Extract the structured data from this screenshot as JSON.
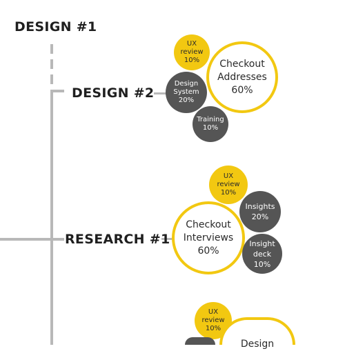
{
  "headings": {
    "design1": "DESIGN #1",
    "design2": "DESIGN #2",
    "research1": "RESEARCH #1"
  },
  "groups": {
    "design2": {
      "ux_review": {
        "label_lines": [
          "UX",
          "review"
        ],
        "pct": "10%"
      },
      "checkout_addresses": {
        "label_lines": [
          "Checkout",
          "Addresses"
        ],
        "pct": "60%"
      },
      "design_system": {
        "label_lines": [
          "Design",
          "System"
        ],
        "pct": "20%"
      },
      "training": {
        "label_lines": [
          "Training"
        ],
        "pct": "10%"
      }
    },
    "research1": {
      "ux_review": {
        "label_lines": [
          "UX",
          "review"
        ],
        "pct": "10%"
      },
      "insights": {
        "label_lines": [
          "Insights"
        ],
        "pct": "20%"
      },
      "checkout_interviews": {
        "label_lines": [
          "Checkout",
          "Interviews"
        ],
        "pct": "60%"
      },
      "insight_deck": {
        "label_lines": [
          "Insight",
          "deck"
        ],
        "pct": "10%"
      }
    },
    "partial": {
      "ux_review": {
        "label_lines": [
          "UX",
          "review"
        ],
        "pct": "10%"
      },
      "design_bubble": {
        "label_lines": [
          "Design"
        ]
      }
    }
  },
  "colors": {
    "accent_yellow": "#f2c811",
    "dark_gray": "#555555",
    "connector_gray": "#b8b8b8",
    "text_dark": "#1f1f1f"
  }
}
